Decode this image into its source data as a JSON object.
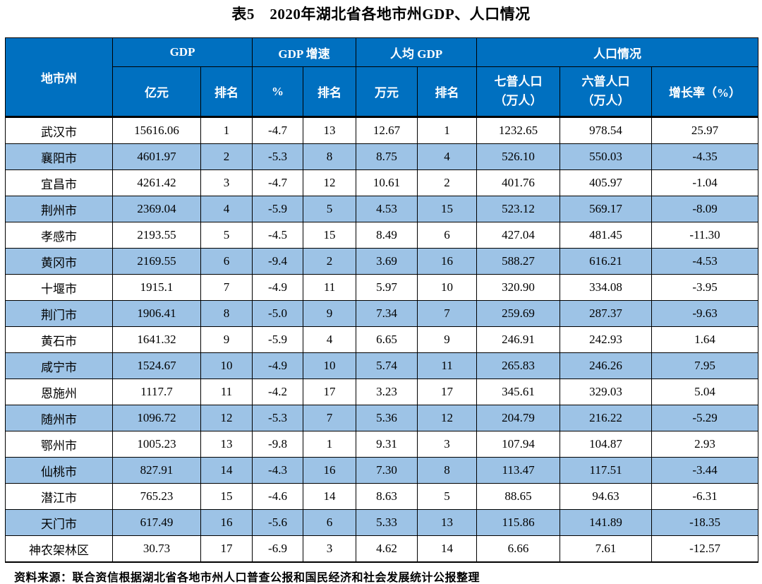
{
  "title": "表5　2020年湖北省各地市州GDP、人口情况",
  "colors": {
    "header_bg": "#0070C0",
    "header_text": "#FFFFFF",
    "alt_row_bg": "#9DC3E6",
    "border": "#000000"
  },
  "chart_data": {
    "type": "table",
    "title": "表5 2020年湖北省各地市州GDP、人口情况",
    "columns": [
      "地市州",
      "GDP 亿元",
      "GDP 排名",
      "GDP增速 %",
      "GDP增速 排名",
      "人均GDP 万元",
      "人均GDP 排名",
      "七普人口（万人）",
      "六普人口（万人）",
      "增长率（%）"
    ],
    "rows": [
      [
        "武汉市",
        "15616.06",
        "1",
        "-4.7",
        "13",
        "12.67",
        "1",
        "1232.65",
        "978.54",
        "25.97"
      ],
      [
        "襄阳市",
        "4601.97",
        "2",
        "-5.3",
        "8",
        "8.75",
        "4",
        "526.10",
        "550.03",
        "-4.35"
      ],
      [
        "宜昌市",
        "4261.42",
        "3",
        "-4.7",
        "12",
        "10.61",
        "2",
        "401.76",
        "405.97",
        "-1.04"
      ],
      [
        "荆州市",
        "2369.04",
        "4",
        "-5.9",
        "5",
        "4.53",
        "15",
        "523.12",
        "569.17",
        "-8.09"
      ],
      [
        "孝感市",
        "2193.55",
        "5",
        "-4.5",
        "15",
        "8.49",
        "6",
        "427.04",
        "481.45",
        "-11.30"
      ],
      [
        "黄冈市",
        "2169.55",
        "6",
        "-9.4",
        "2",
        "3.69",
        "16",
        "588.27",
        "616.21",
        "-4.53"
      ],
      [
        "十堰市",
        "1915.1",
        "7",
        "-4.9",
        "11",
        "5.97",
        "10",
        "320.90",
        "334.08",
        "-3.95"
      ],
      [
        "荆门市",
        "1906.41",
        "8",
        "-5.0",
        "9",
        "7.34",
        "7",
        "259.69",
        "287.37",
        "-9.63"
      ],
      [
        "黄石市",
        "1641.32",
        "9",
        "-5.9",
        "4",
        "6.65",
        "9",
        "246.91",
        "242.93",
        "1.64"
      ],
      [
        "咸宁市",
        "1524.67",
        "10",
        "-4.9",
        "10",
        "5.74",
        "11",
        "265.83",
        "246.26",
        "7.95"
      ],
      [
        "恩施州",
        "1117.7",
        "11",
        "-4.2",
        "17",
        "3.23",
        "17",
        "345.61",
        "329.03",
        "5.04"
      ],
      [
        "随州市",
        "1096.72",
        "12",
        "-5.3",
        "7",
        "5.36",
        "12",
        "204.79",
        "216.22",
        "-5.29"
      ],
      [
        "鄂州市",
        "1005.23",
        "13",
        "-9.8",
        "1",
        "9.31",
        "3",
        "107.94",
        "104.87",
        "2.93"
      ],
      [
        "仙桃市",
        "827.91",
        "14",
        "-4.3",
        "16",
        "7.30",
        "8",
        "113.47",
        "117.51",
        "-3.44"
      ],
      [
        "潜江市",
        "765.23",
        "15",
        "-4.6",
        "14",
        "8.63",
        "5",
        "88.65",
        "94.63",
        "-6.31"
      ],
      [
        "天门市",
        "617.49",
        "16",
        "-5.6",
        "6",
        "5.33",
        "13",
        "115.86",
        "141.89",
        "-18.35"
      ],
      [
        "神农架林区",
        "30.73",
        "17",
        "-6.9",
        "3",
        "4.62",
        "14",
        "6.66",
        "7.61",
        "-12.57"
      ]
    ]
  },
  "table": {
    "header": {
      "region_col": "地市州",
      "groups": [
        {
          "label": "GDP",
          "cols": [
            "亿元",
            "排名"
          ]
        },
        {
          "label": "GDP 增速",
          "cols": [
            "%",
            "排名"
          ]
        },
        {
          "label": "人均 GDP",
          "cols": [
            "万元",
            "排名"
          ]
        },
        {
          "label": "人口情况",
          "cols": [
            "七普人口\n（万人）",
            "六普人口\n（万人）",
            "增长率（%）"
          ]
        }
      ]
    }
  },
  "source_note": "资料来源：联合资信根据湖北省各地市州人口普查公报和国民经济和社会发展统计公报整理"
}
